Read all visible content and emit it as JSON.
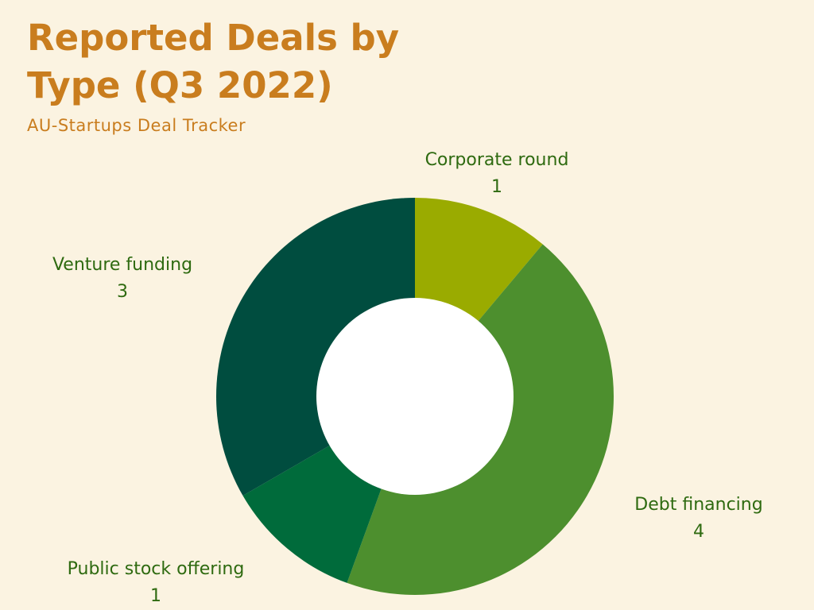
{
  "header": {
    "title": "Reported Deals by Type (Q3 2022)",
    "subtitle": "AU-Startups Deal Tracker"
  },
  "colors": {
    "background": "#fbf3e1",
    "title": "#c97d1e",
    "label": "#2e6a10",
    "hole": "#ffffff"
  },
  "chart_data": {
    "type": "pie",
    "style": "donut",
    "categories": [
      "Corporate round",
      "Debt financing",
      "Public stock offering",
      "Venture funding"
    ],
    "values": [
      1,
      4,
      1,
      3
    ],
    "colors": [
      "#9aab00",
      "#4d8f2e",
      "#006b3b",
      "#004d3f"
    ],
    "start_angle": "12 o'clock",
    "direction": "clockwise",
    "legend": "none"
  }
}
